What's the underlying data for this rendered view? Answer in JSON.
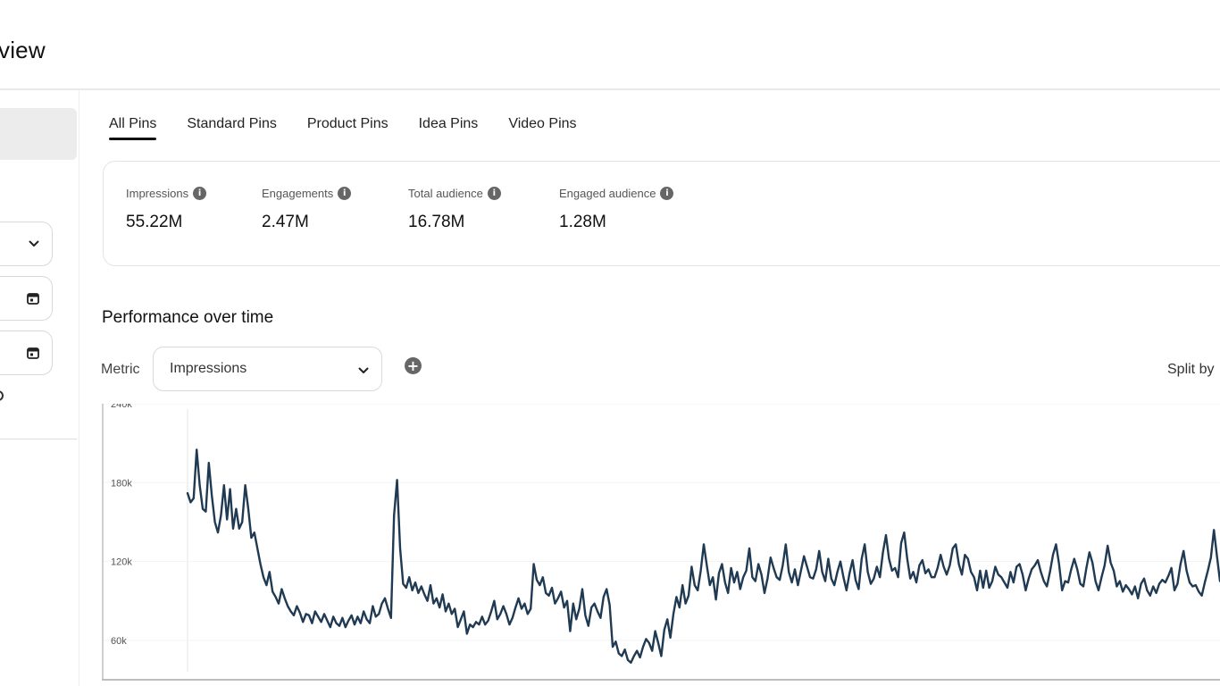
{
  "page": {
    "title": "view"
  },
  "sidebar": {
    "controls": [
      {
        "icon": "chevron-down-icon"
      },
      {
        "icon": "calendar-icon"
      },
      {
        "icon": "calendar-icon"
      }
    ]
  },
  "tabs": [
    {
      "label": "All Pins",
      "active": true
    },
    {
      "label": "Standard Pins",
      "active": false
    },
    {
      "label": "Product Pins",
      "active": false
    },
    {
      "label": "Idea Pins",
      "active": false
    },
    {
      "label": "Video Pins",
      "active": false
    }
  ],
  "metrics": [
    {
      "label": "Impressions",
      "value": "55.22M"
    },
    {
      "label": "Engagements",
      "value": "2.47M"
    },
    {
      "label": "Total audience",
      "value": "16.78M"
    },
    {
      "label": "Engaged audience",
      "value": "1.28M"
    }
  ],
  "performance": {
    "title": "Performance over time",
    "metric_label": "Metric",
    "metric_value": "Impressions",
    "split_by_label": "Split by"
  },
  "colors": {
    "line": "#1f3a52",
    "accent": "#111111"
  },
  "chart_data": {
    "type": "line",
    "title": "",
    "xlabel": "",
    "ylabel": "",
    "ylim": [
      30000,
      240000
    ],
    "yticks": [
      {
        "value": 240000,
        "label": "240k"
      },
      {
        "value": 180000,
        "label": "180k"
      },
      {
        "value": 120000,
        "label": "120k"
      },
      {
        "value": 60000,
        "label": "60k"
      }
    ],
    "series": [
      {
        "values": [
          172000,
          165000,
          168000,
          205000,
          178000,
          160000,
          158000,
          195000,
          170000,
          150000,
          142000,
          155000,
          178000,
          152000,
          175000,
          145000,
          160000,
          145000,
          150000,
          178000,
          160000,
          138000,
          142000,
          130000,
          118000,
          108000,
          102000,
          112000,
          97000,
          93000,
          88000,
          99000,
          92000,
          86000,
          82000,
          79000,
          86000,
          81000,
          74000,
          80000,
          79000,
          73000,
          82000,
          78000,
          74000,
          80000,
          75000,
          70000,
          78000,
          73000,
          71000,
          77000,
          70000,
          75000,
          79000,
          72000,
          78000,
          73000,
          82000,
          76000,
          73000,
          86000,
          78000,
          80000,
          88000,
          92000,
          84000,
          77000,
          155000,
          182000,
          130000,
          103000,
          100000,
          108000,
          98000,
          104000,
          96000,
          101000,
          95000,
          90000,
          102000,
          88000,
          92000,
          85000,
          95000,
          82000,
          88000,
          80000,
          84000,
          70000,
          76000,
          82000,
          65000,
          72000,
          70000,
          74000,
          72000,
          78000,
          72000,
          75000,
          82000,
          90000,
          76000,
          80000,
          86000,
          80000,
          72000,
          77000,
          85000,
          92000,
          84000,
          88000,
          80000,
          84000,
          118000,
          106000,
          102000,
          108000,
          96000,
          94000,
          100000,
          88000,
          92000,
          97000,
          85000,
          90000,
          67000,
          88000,
          76000,
          84000,
          99000,
          79000,
          71000,
          85000,
          88000,
          82000,
          77000,
          93000,
          99000,
          87000,
          55000,
          59000,
          50000,
          48000,
          53000,
          45000,
          43000,
          48000,
          52000,
          47000,
          55000,
          61000,
          58000,
          52000,
          67000,
          58000,
          48000,
          68000,
          76000,
          62000,
          80000,
          93000,
          85000,
          102000,
          88000,
          94000,
          116000,
          102000,
          98000,
          113000,
          133000,
          117000,
          102000,
          108000,
          91000,
          111000,
          118000,
          104000,
          96000,
          115000,
          104000,
          112000,
          99000,
          108000,
          113000,
          130000,
          108000,
          105000,
          118000,
          110000,
          96000,
          107000,
          123000,
          115000,
          108000,
          106000,
          117000,
          133000,
          112000,
          104000,
          114000,
          102000,
          113000,
          124000,
          116000,
          108000,
          107000,
          114000,
          128000,
          112000,
          105000,
          122000,
          107000,
          102000,
          112000,
          120000,
          108000,
          98000,
          111000,
          121000,
          106000,
          99000,
          122000,
          133000,
          112000,
          103000,
          107000,
          116000,
          108000,
          127000,
          140000,
          122000,
          113000,
          115000,
          108000,
          134000,
          142000,
          122000,
          107000,
          112000,
          104000,
          117000,
          121000,
          111000,
          114000,
          108000,
          108000,
          115000,
          125000,
          116000,
          110000,
          117000,
          130000,
          133000,
          118000,
          110000,
          125000,
          122000,
          112000,
          108000,
          98000,
          113000,
          100000,
          113000,
          100000,
          105000,
          116000,
          110000,
          108000,
          104000,
          100000,
          112000,
          104000,
          116000,
          118000,
          110000,
          98000,
          107000,
          114000,
          117000,
          121000,
          112000,
          105000,
          101000,
          112000,
          125000,
          133000,
          118000,
          98000,
          105000,
          104000,
          114000,
          122000,
          114000,
          103000,
          101000,
          115000,
          127000,
          119000,
          105000,
          98000,
          108000,
          117000,
          132000,
          119000,
          113000,
          101000,
          105000,
          97000,
          102000,
          99000,
          95000,
          101000,
          92000,
          103000,
          107000,
          98000,
          94000,
          101000,
          96000,
          103000,
          106000,
          104000,
          109000,
          115000,
          98000,
          103000,
          118000,
          128000,
          113000,
          104000,
          101000,
          102000,
          97000,
          94000,
          104000,
          113000,
          123000,
          144000,
          124000,
          105000
        ]
      }
    ]
  }
}
